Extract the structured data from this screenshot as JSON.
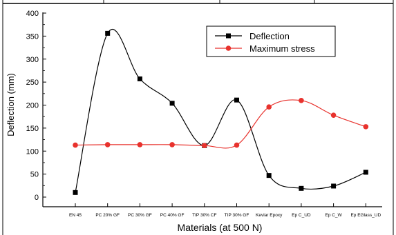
{
  "chart_data": {
    "type": "line",
    "title": "",
    "xlabel": "Materials (at 500 N)",
    "ylabel": "Deflection (mm)",
    "categories": [
      "EN 45",
      "PC 20% GF",
      "PC 30% GF",
      "PC 40% GF",
      "TIP 30% CF",
      "TIP 30% GF",
      "Kevlar Epoxy",
      "Ep C_UD",
      "Ep C_W",
      "Ep EGlass_UD"
    ],
    "ylim": [
      0,
      400
    ],
    "yticks": [
      0,
      50,
      100,
      150,
      200,
      250,
      300,
      350,
      400
    ],
    "grid": false,
    "legend_position": "top-right",
    "series": [
      {
        "name": "Deflection",
        "color": "#000000",
        "marker": "square",
        "smooth": true,
        "values": [
          10,
          356,
          257,
          204,
          112,
          211,
          47,
          19,
          24,
          54
        ]
      },
      {
        "name": "Maximum stress",
        "color": "#e8322d",
        "marker": "circle",
        "smooth": true,
        "values": [
          113,
          114,
          114,
          114,
          112,
          113,
          196,
          210,
          178,
          153
        ]
      }
    ]
  }
}
